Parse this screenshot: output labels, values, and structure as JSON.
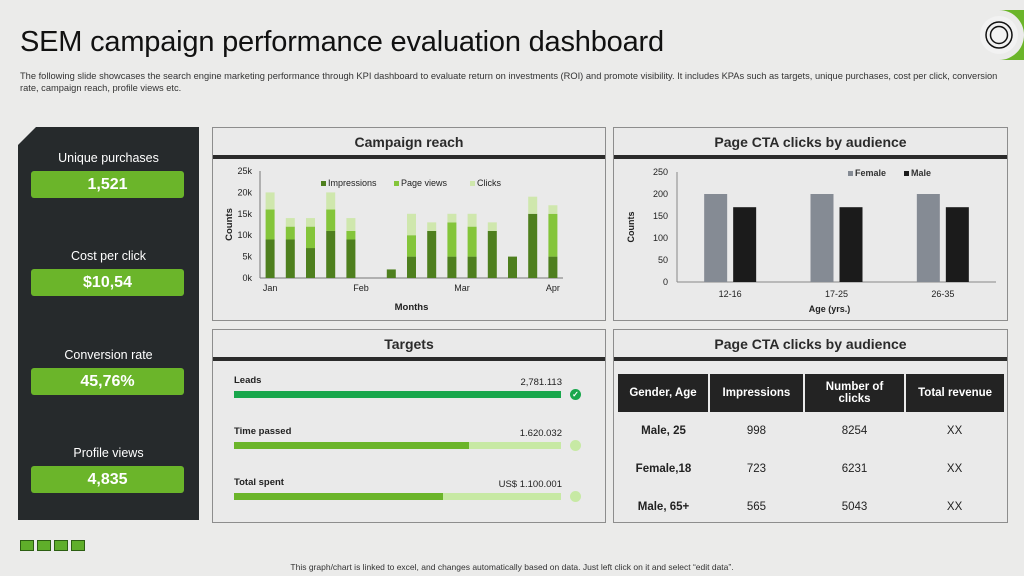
{
  "header": {
    "title": "SEM campaign performance evaluation dashboard",
    "description": "The following slide showcases the search engine marketing performance through KPI dashboard to evaluate return on investments (ROI) and promote visibility. It includes KPAs such as targets, unique purchases, cost per click, conversion rate, campaign reach, profile views etc."
  },
  "kpis": [
    {
      "label": "Unique purchases",
      "value": "1,521"
    },
    {
      "label": "Cost per click",
      "value": "$10,54"
    },
    {
      "label": "Conversion rate",
      "value": "45,76%"
    },
    {
      "label": "Profile views",
      "value": "4,835"
    }
  ],
  "colors": {
    "accent": "#6bb52a",
    "dark_panel": "#262a2c",
    "target_green": "#19a74c",
    "light_green": "#c7e9a4"
  },
  "campaign_reach": {
    "title": "Campaign reach"
  },
  "cta_chart": {
    "title": "Page CTA clicks by audience"
  },
  "targets": {
    "title": "Targets",
    "items": [
      {
        "label": "Leads",
        "value": "2,781.113",
        "progress": 1.0,
        "color": "#19a74c",
        "completed": true,
        "check": "✓"
      },
      {
        "label": "Time passed",
        "value": "1.620.032",
        "progress": 0.72,
        "color": "#6bb52a",
        "completed": false
      },
      {
        "label": "Total spent",
        "value": "US$ 1.100.001",
        "progress": 0.64,
        "color": "#6bb52a",
        "completed": false
      }
    ]
  },
  "cta_table": {
    "title": "Page CTA clicks by audience",
    "headers": [
      "Gender, Age",
      "Impressions",
      "Number of clicks",
      "Total revenue"
    ],
    "rows": [
      [
        "Male, 25",
        "998",
        "8254",
        "XX"
      ],
      [
        "Female,18",
        "723",
        "6231",
        "XX"
      ],
      [
        "Male, 65+",
        "565",
        "5043",
        "XX"
      ]
    ]
  },
  "footnote": "This graph/chart is linked to excel, and changes automatically based on data. Just left click on it and select “edit data”.",
  "chart_data": [
    {
      "type": "bar",
      "stacked": true,
      "title": "Campaign reach",
      "xlabel": "Months",
      "ylabel": "Counts",
      "ylim": [
        0,
        25000
      ],
      "yticks": [
        "0k",
        "5k",
        "10k",
        "15k",
        "20k",
        "25k"
      ],
      "xtick_labels": [
        "Jan",
        "Feb",
        "Mar",
        "Apr"
      ],
      "legend_position": "top",
      "colors": [
        "#4e7f1e",
        "#84c53a",
        "#cfe7ad"
      ],
      "series": [
        {
          "name": "Impressions",
          "values": [
            9000,
            9000,
            7000,
            11000,
            9000,
            0,
            2000,
            5000,
            11000,
            5000,
            5000,
            11000,
            5000,
            15000,
            5000
          ]
        },
        {
          "name": "Page views",
          "values": [
            7000,
            3000,
            5000,
            5000,
            2000,
            0,
            0,
            5000,
            0,
            8000,
            7000,
            0,
            0,
            0,
            10000
          ]
        },
        {
          "name": "Clicks",
          "values": [
            4000,
            2000,
            2000,
            4000,
            3000,
            0,
            0,
            5000,
            2000,
            2000,
            3000,
            2000,
            0,
            4000,
            2000
          ]
        }
      ]
    },
    {
      "type": "bar",
      "title": "Page CTA clicks by audience",
      "xlabel": "Age (yrs.)",
      "ylabel": "Counts",
      "ylim": [
        0,
        250
      ],
      "yticks": [
        0,
        50,
        100,
        150,
        200,
        250
      ],
      "categories": [
        "12-16",
        "17-25",
        "26-35"
      ],
      "legend_position": "top",
      "colors": [
        "#858b94",
        "#1b1b1b"
      ],
      "series": [
        {
          "name": "Female",
          "values": [
            200,
            200,
            200
          ]
        },
        {
          "name": "Male",
          "values": [
            170,
            170,
            170
          ]
        }
      ]
    }
  ]
}
